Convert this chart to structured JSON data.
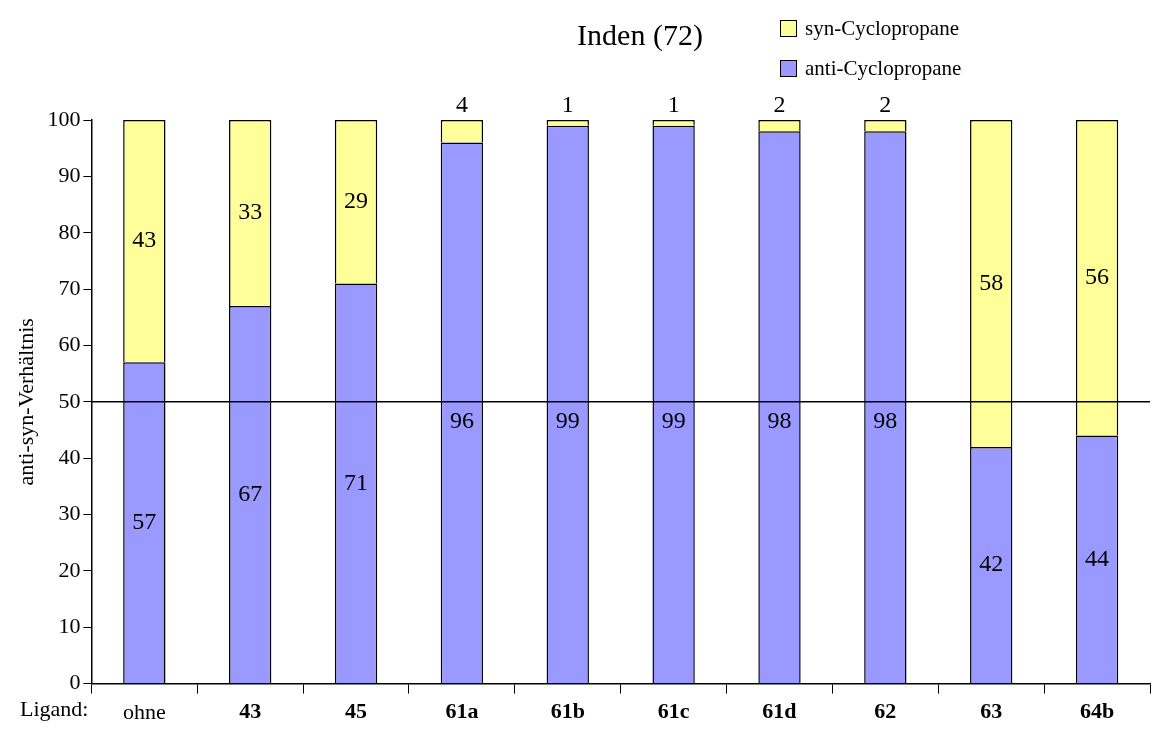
{
  "chart_data": {
    "type": "bar",
    "title": "Inden (72)",
    "ylabel": "anti-syn-Verhältnis",
    "stacked": true,
    "legend": "top right",
    "data_labels": true,
    "categories": [
      "ohne",
      "43",
      "45",
      "61a",
      "61b",
      "61c",
      "61d",
      "62",
      "63",
      "64b"
    ],
    "series": [
      {
        "name": "anti-Cyclopropane",
        "color": "#9999ff",
        "values": [
          57,
          67,
          71,
          96,
          99,
          99,
          98,
          98,
          42,
          44
        ]
      },
      {
        "name": "syn-Cyclopropane",
        "color": "#ffff99",
        "values": [
          43,
          33,
          29,
          4,
          1,
          1,
          2,
          2,
          58,
          56
        ]
      }
    ],
    "ylim": [
      0,
      100
    ],
    "yticks": [
      0,
      10,
      20,
      30,
      40,
      50,
      60,
      70,
      80,
      90,
      100
    ],
    "grid": false,
    "ref_lines": [
      {
        "axis": "y",
        "value": 50,
        "color": "#000000"
      }
    ],
    "annotations": [
      "Ligand:"
    ]
  }
}
